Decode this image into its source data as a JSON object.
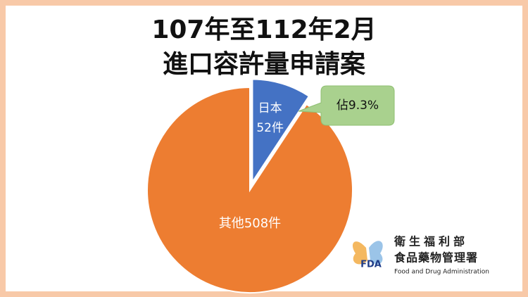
{
  "chart_data": {
    "type": "pie",
    "title": [
      "107年至112年2月",
      "進口容許量申請案"
    ],
    "categories": [
      "日本",
      "其他"
    ],
    "values": [
      52,
      508
    ],
    "value_labels": [
      "52件",
      "508件"
    ],
    "colors": [
      "#4472c4",
      "#ed7d31"
    ],
    "annotation": "佔9.3%"
  },
  "logo": {
    "mark": "FDA",
    "lines": [
      "衛生福利部",
      "食品藥物管理署",
      "Food and Drug Administration"
    ]
  }
}
